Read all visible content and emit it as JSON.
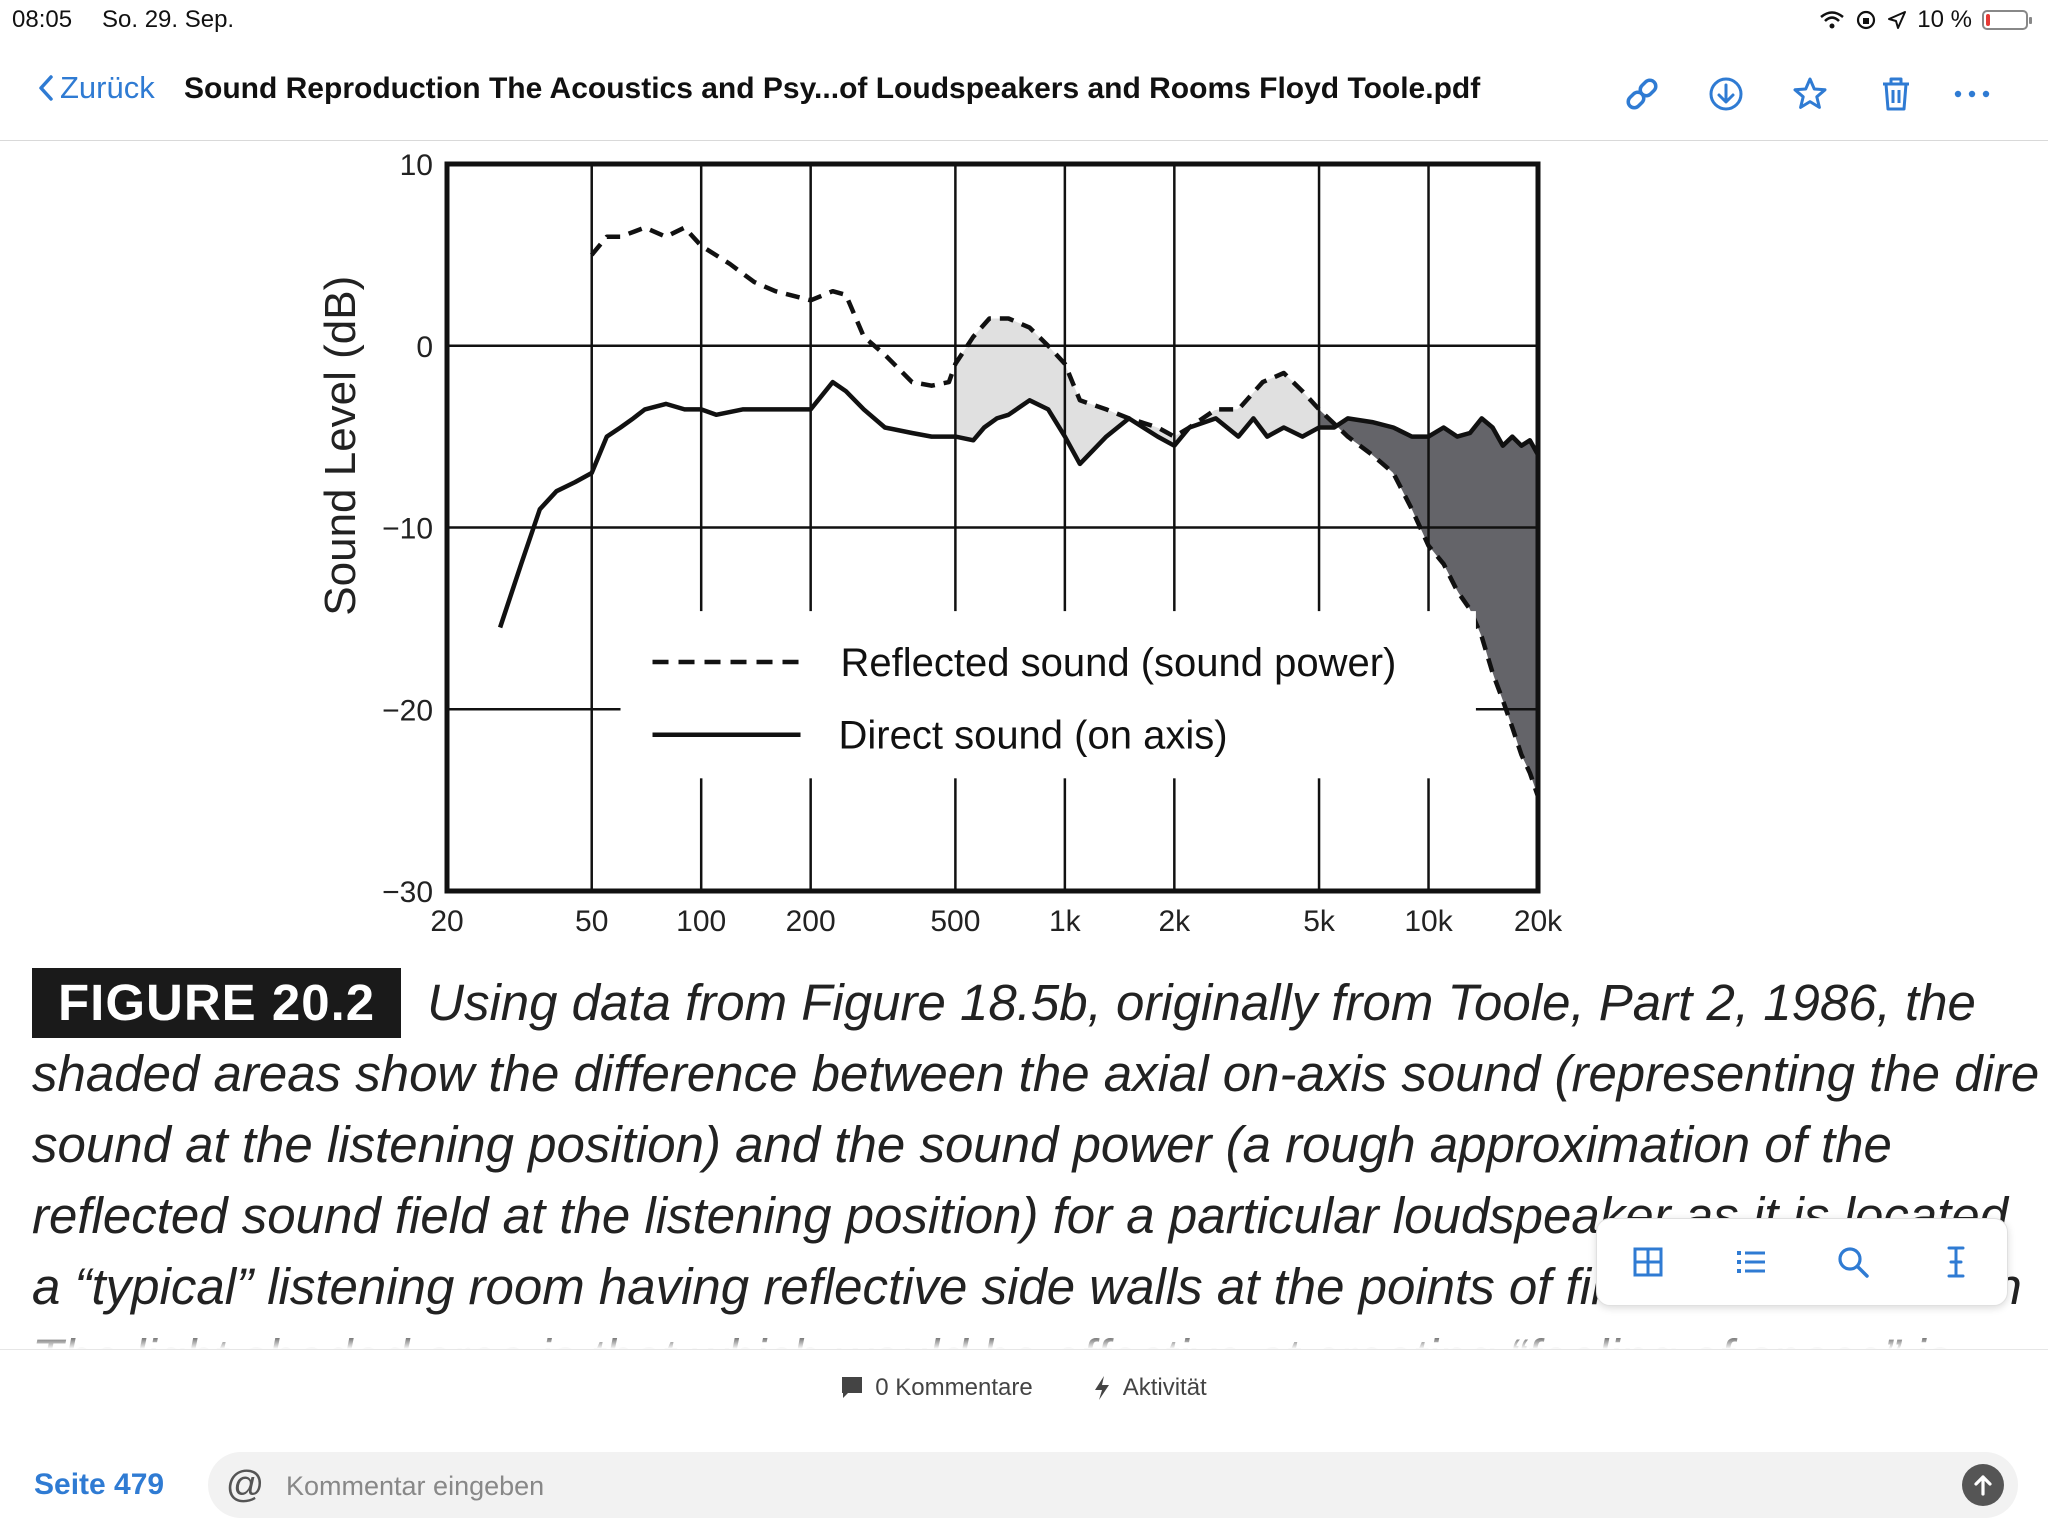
{
  "status": {
    "time": "08:05",
    "date": "So. 29. Sep.",
    "battery_text": "10 %",
    "battery_level": 0.1
  },
  "nav": {
    "back_label": "Zurück",
    "title": "Sound Reproduction The Acoustics and Psy...of Loudspeakers and Rooms Floyd Toole.pdf"
  },
  "colors": {
    "accent": "#2f7bd3",
    "light_shade": "#e0e0e0",
    "dark_shade": "#646469"
  },
  "icons": {
    "link": "link-icon",
    "download": "download-icon",
    "star": "star-icon",
    "trash": "trash-icon",
    "more": "more-icon"
  },
  "chart_data": {
    "type": "line",
    "xscale": "log",
    "xlim": [
      20,
      20000
    ],
    "ylim": [
      -30,
      10
    ],
    "ylabel": "Sound Level (dB)",
    "xticks": [
      20,
      50,
      100,
      200,
      500,
      1000,
      2000,
      5000,
      10000,
      20000
    ],
    "xtick_labels": [
      "20",
      "50",
      "100",
      "200",
      "500",
      "1k",
      "2k",
      "5k",
      "10k",
      "20k"
    ],
    "yticks": [
      10,
      0,
      -10,
      -20,
      -30
    ],
    "ytick_labels": [
      "10",
      "0",
      "−10",
      "−20",
      "−30"
    ],
    "grid": true,
    "legend_position": "bottom-center",
    "series": [
      {
        "name": "Reflected sound (sound power)",
        "style": "dashed",
        "x": [
          50,
          55,
          60,
          70,
          80,
          90,
          100,
          120,
          140,
          160,
          200,
          230,
          250,
          280,
          320,
          380,
          430,
          480,
          500,
          560,
          620,
          700,
          800,
          900,
          1000,
          1100,
          1300,
          1500,
          1800,
          2000,
          2200,
          2600,
          3000,
          3500,
          4000,
          4500,
          5000,
          6000,
          7000,
          8000,
          9000,
          10000,
          11000,
          12000,
          13000,
          14000,
          15000,
          16000,
          17000,
          18000,
          19000,
          20000
        ],
        "y": [
          5,
          6,
          6,
          6.5,
          6,
          6.5,
          5.5,
          4.5,
          3.5,
          3,
          2.5,
          3,
          2.8,
          0.5,
          -0.5,
          -2,
          -2.2,
          -2,
          -1,
          0.5,
          1.5,
          1.5,
          1,
          0,
          -1,
          -3,
          -3.5,
          -4,
          -4.5,
          -5,
          -4.5,
          -3.5,
          -3.5,
          -2,
          -1.5,
          -2.5,
          -3.5,
          -5,
          -6,
          -7,
          -9,
          -11,
          -12,
          -13.5,
          -14.5,
          -16,
          -18,
          -19.5,
          -21,
          -22.5,
          -23.5,
          -24.8
        ]
      },
      {
        "name": "Direct sound (on axis)",
        "style": "solid",
        "x": [
          28,
          32,
          36,
          40,
          45,
          50,
          55,
          60,
          65,
          70,
          80,
          90,
          100,
          110,
          130,
          160,
          200,
          230,
          250,
          280,
          320,
          380,
          430,
          480,
          500,
          560,
          600,
          650,
          700,
          800,
          900,
          1000,
          1100,
          1300,
          1500,
          1800,
          2000,
          2200,
          2600,
          3000,
          3300,
          3600,
          4000,
          4500,
          5000,
          5500,
          6000,
          7000,
          8000,
          9000,
          10000,
          11000,
          12000,
          13000,
          14000,
          15000,
          16000,
          17000,
          18000,
          19000,
          20000
        ],
        "y": [
          -15.5,
          -12,
          -9,
          -8,
          -7.5,
          -7,
          -5,
          -4.5,
          -4,
          -3.5,
          -3.2,
          -3.5,
          -3.5,
          -3.8,
          -3.5,
          -3.5,
          -3.5,
          -2,
          -2.5,
          -3.5,
          -4.5,
          -4.8,
          -5,
          -5,
          -5,
          -5.2,
          -4.5,
          -4,
          -3.8,
          -3,
          -3.5,
          -5,
          -6.5,
          -5,
          -4,
          -5,
          -5.5,
          -4.5,
          -4,
          -5,
          -4,
          -5,
          -4.5,
          -5,
          -4.5,
          -4.5,
          -4,
          -4.2,
          -4.5,
          -5,
          -5,
          -4.5,
          -5,
          -4.8,
          -4,
          -4.5,
          -5.5,
          -5,
          -5.5,
          -5.2,
          -6
        ]
      }
    ],
    "shading": [
      {
        "from": 500,
        "to": 5000,
        "shade": "light"
      },
      {
        "from": 5000,
        "to": 20000,
        "shade": "dark"
      }
    ]
  },
  "caption": {
    "figure_label": "FIGURE 20.2",
    "lines": [
      "Using data from Figure 18.5b, originally from Toole, Part 2, 1986, the",
      "shaded areas show the difference between the axial on-axis sound (representing the dire",
      "sound at the listening position) and the sound power (a rough approximation of the",
      "reflected sound field at the listening position) for a particular loudspeaker as it is located",
      "a “typical” listening room having reflective side walls at the points of first lateral reflection",
      "The light shaded area is that which would be effective at creating “feeling of space” is"
    ]
  },
  "toolbar": {
    "icons": [
      "grid-icon",
      "list-icon",
      "search-icon",
      "text-cursor-icon"
    ]
  },
  "bottom": {
    "comments_label": "0 Kommentare",
    "activity_label": "Aktivität",
    "page_label": "Seite 479",
    "comment_placeholder": "Kommentar eingeben"
  }
}
